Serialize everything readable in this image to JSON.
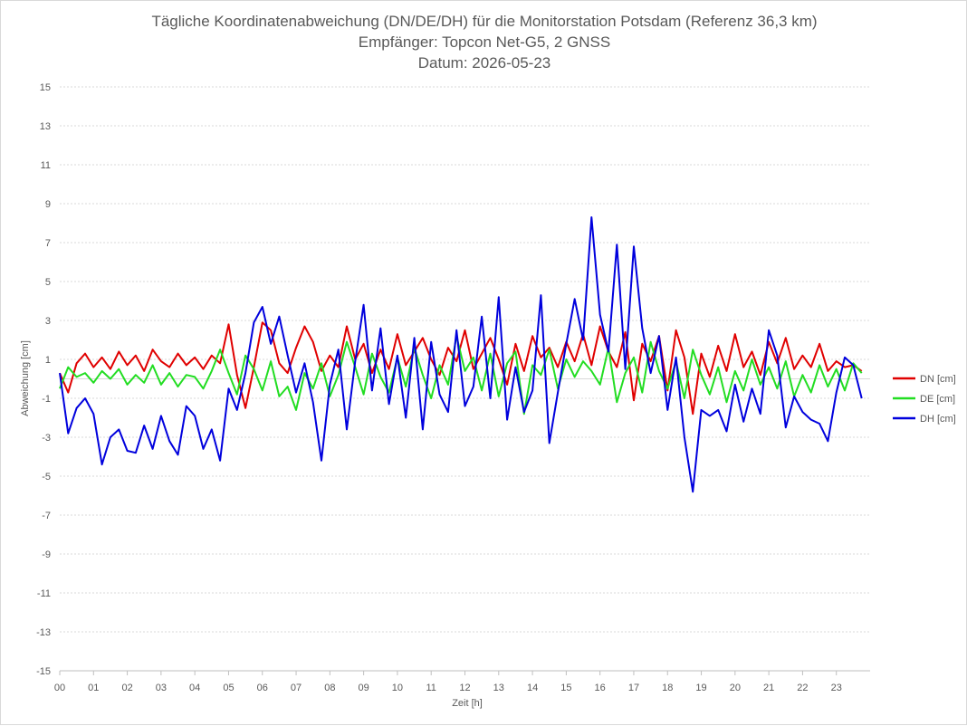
{
  "chart_data": {
    "type": "line",
    "title_lines": [
      "Tägliche Koordinatenabweichung (DN/DE/DH) für die Monitorstation Potsdam (Referenz 36,3 km)",
      "Empfänger: Topcon Net-G5, 2 GNSS",
      "Datum: 2026-05-23"
    ],
    "xlabel": "Zeit [h]",
    "ylabel": "Abweichung [cm]",
    "xlim": [
      0,
      24
    ],
    "ylim": [
      -15,
      15
    ],
    "x_ticks": [
      "00",
      "01",
      "02",
      "03",
      "04",
      "05",
      "06",
      "07",
      "08",
      "09",
      "10",
      "11",
      "12",
      "13",
      "14",
      "15",
      "16",
      "17",
      "18",
      "19",
      "20",
      "21",
      "22",
      "23"
    ],
    "y_ticks": [
      15,
      13,
      11,
      9,
      7,
      5,
      3,
      1,
      -1,
      -3,
      -5,
      -7,
      -9,
      -11,
      -13,
      -15
    ],
    "grid": "horizontal dotted",
    "legend_position": "right",
    "series": [
      {
        "name": "DN [cm]",
        "color": "#e00000",
        "x": [
          0,
          0.25,
          0.5,
          0.75,
          1,
          1.25,
          1.5,
          1.75,
          2,
          2.25,
          2.5,
          2.75,
          3,
          3.25,
          3.5,
          3.75,
          4,
          4.25,
          4.5,
          4.75,
          5,
          5.25,
          5.5,
          5.75,
          6,
          6.25,
          6.5,
          6.75,
          7,
          7.25,
          7.5,
          7.75,
          8,
          8.25,
          8.5,
          8.75,
          9,
          9.25,
          9.5,
          9.75,
          10,
          10.25,
          10.5,
          10.75,
          11,
          11.25,
          11.5,
          11.75,
          12,
          12.25,
          12.5,
          12.75,
          13,
          13.25,
          13.5,
          13.75,
          14,
          14.25,
          14.5,
          14.75,
          15,
          15.25,
          15.5,
          15.75,
          16,
          16.25,
          16.5,
          16.75,
          17,
          17.25,
          17.5,
          17.75,
          18,
          18.25,
          18.5,
          18.75,
          19,
          19.25,
          19.5,
          19.75,
          20,
          20.25,
          20.5,
          20.75,
          21,
          21.25,
          21.5,
          21.75,
          22,
          22.25,
          22.5,
          22.75,
          23,
          23.25,
          23.5,
          23.75
        ],
        "values": [
          0.3,
          -0.7,
          0.8,
          1.3,
          0.6,
          1.1,
          0.5,
          1.4,
          0.7,
          1.2,
          0.4,
          1.5,
          0.9,
          0.6,
          1.3,
          0.7,
          1.1,
          0.5,
          1.2,
          0.8,
          2.8,
          0.2,
          -1.5,
          0.6,
          2.9,
          2.5,
          0.8,
          0.3,
          1.6,
          2.7,
          1.9,
          0.4,
          1.2,
          0.6,
          2.7,
          1.0,
          1.8,
          0.3,
          1.5,
          0.5,
          2.3,
          0.7,
          1.4,
          2.1,
          1.0,
          0.2,
          1.6,
          0.9,
          2.5,
          0.5,
          1.3,
          2.1,
          1.0,
          -0.3,
          1.8,
          0.4,
          2.2,
          1.1,
          1.6,
          0.6,
          1.9,
          0.9,
          2.3,
          0.7,
          2.7,
          1.4,
          0.6,
          2.4,
          -1.1,
          1.8,
          0.9,
          2.2,
          -0.6,
          2.5,
          1.1,
          -1.8,
          1.3,
          0.1,
          1.7,
          0.4,
          2.3,
          0.6,
          1.4,
          0.2,
          1.9,
          0.8,
          2.1,
          0.5,
          1.2,
          0.6,
          1.8,
          0.4,
          0.9,
          0.6,
          0.7,
          0.4
        ]
      },
      {
        "name": "DE [cm]",
        "color": "#22dd22",
        "x": [
          0,
          0.25,
          0.5,
          0.75,
          1,
          1.25,
          1.5,
          1.75,
          2,
          2.25,
          2.5,
          2.75,
          3,
          3.25,
          3.5,
          3.75,
          4,
          4.25,
          4.5,
          4.75,
          5,
          5.25,
          5.5,
          5.75,
          6,
          6.25,
          6.5,
          6.75,
          7,
          7.25,
          7.5,
          7.75,
          8,
          8.25,
          8.5,
          8.75,
          9,
          9.25,
          9.5,
          9.75,
          10,
          10.25,
          10.5,
          10.75,
          11,
          11.25,
          11.5,
          11.75,
          12,
          12.25,
          12.5,
          12.75,
          13,
          13.25,
          13.5,
          13.75,
          14,
          14.25,
          14.5,
          14.75,
          15,
          15.25,
          15.5,
          15.75,
          16,
          16.25,
          16.5,
          16.75,
          17,
          17.25,
          17.5,
          17.75,
          18,
          18.25,
          18.5,
          18.75,
          19,
          19.25,
          19.5,
          19.75,
          20,
          20.25,
          20.5,
          20.75,
          21,
          21.25,
          21.5,
          21.75,
          22,
          22.25,
          22.5,
          22.75,
          23,
          23.25,
          23.5,
          23.75
        ],
        "values": [
          -0.5,
          0.6,
          0.1,
          0.3,
          -0.2,
          0.4,
          0.0,
          0.5,
          -0.3,
          0.2,
          -0.2,
          0.7,
          -0.3,
          0.3,
          -0.4,
          0.2,
          0.1,
          -0.5,
          0.4,
          1.5,
          0.3,
          -0.8,
          1.2,
          0.5,
          -0.6,
          0.9,
          -0.9,
          -0.4,
          -1.6,
          0.3,
          -0.5,
          0.8,
          -0.9,
          0.2,
          1.9,
          0.6,
          -0.8,
          1.3,
          0.1,
          -0.7,
          1.1,
          -0.4,
          1.6,
          0.2,
          -1.0,
          0.7,
          -0.3,
          2.2,
          0.4,
          1.1,
          -0.6,
          1.3,
          -0.9,
          0.8,
          1.4,
          -1.8,
          0.7,
          0.2,
          1.5,
          -0.5,
          1.0,
          0.1,
          0.9,
          0.4,
          -0.3,
          1.6,
          -1.2,
          0.3,
          1.1,
          -0.7,
          1.9,
          0.4,
          -0.5,
          0.9,
          -1.0,
          1.5,
          0.2,
          -0.8,
          0.6,
          -1.2,
          0.4,
          -0.6,
          1.0,
          -0.3,
          0.6,
          -0.5,
          0.9,
          -0.9,
          0.2,
          -0.7,
          0.7,
          -0.4,
          0.5,
          -0.6,
          0.8,
          0.3
        ]
      },
      {
        "name": "DH [cm]",
        "color": "#0000dd",
        "x": [
          0,
          0.25,
          0.5,
          0.75,
          1,
          1.25,
          1.5,
          1.75,
          2,
          2.25,
          2.5,
          2.75,
          3,
          3.25,
          3.5,
          3.75,
          4,
          4.25,
          4.5,
          4.75,
          5,
          5.25,
          5.5,
          5.75,
          6,
          6.25,
          6.5,
          6.75,
          7,
          7.25,
          7.5,
          7.75,
          8,
          8.25,
          8.5,
          8.75,
          9,
          9.25,
          9.5,
          9.75,
          10,
          10.25,
          10.5,
          10.75,
          11,
          11.25,
          11.5,
          11.75,
          12,
          12.25,
          12.5,
          12.75,
          13,
          13.25,
          13.5,
          13.75,
          14,
          14.25,
          14.5,
          14.75,
          15,
          15.25,
          15.5,
          15.75,
          16,
          16.25,
          16.5,
          16.75,
          17,
          17.25,
          17.5,
          17.75,
          18,
          18.25,
          18.5,
          18.75,
          19,
          19.25,
          19.5,
          19.75,
          20,
          20.25,
          20.5,
          20.75,
          21,
          21.25,
          21.5,
          21.75,
          22,
          22.25,
          22.5,
          22.75,
          23,
          23.25,
          23.5,
          23.75
        ],
        "values": [
          0.3,
          -2.8,
          -1.5,
          -1.0,
          -1.8,
          -4.4,
          -3.0,
          -2.6,
          -3.7,
          -3.8,
          -2.4,
          -3.6,
          -1.9,
          -3.2,
          -3.9,
          -1.4,
          -1.9,
          -3.6,
          -2.6,
          -4.2,
          -0.5,
          -1.6,
          0.3,
          2.9,
          3.7,
          1.8,
          3.2,
          1.2,
          -0.7,
          0.8,
          -1.2,
          -4.2,
          -0.3,
          1.5,
          -2.6,
          0.9,
          3.8,
          -0.6,
          2.6,
          -1.3,
          1.2,
          -2.0,
          2.1,
          -2.6,
          1.9,
          -0.8,
          -1.7,
          2.5,
          -1.4,
          -0.4,
          3.2,
          -1.0,
          4.2,
          -2.1,
          0.6,
          -1.7,
          -0.6,
          4.3,
          -3.3,
          -0.7,
          1.8,
          4.1,
          2.0,
          8.3,
          3.3,
          1.4,
          6.9,
          0.5,
          6.8,
          2.6,
          0.3,
          2.2,
          -1.6,
          1.1,
          -3.0,
          -5.8,
          -1.6,
          -1.9,
          -1.6,
          -2.7,
          -0.3,
          -2.2,
          -0.5,
          -1.8,
          2.5,
          1.2,
          -2.5,
          -0.9,
          -1.7,
          -2.1,
          -2.3,
          -3.2,
          -0.7,
          1.1,
          0.7,
          -1.0
        ]
      }
    ]
  }
}
